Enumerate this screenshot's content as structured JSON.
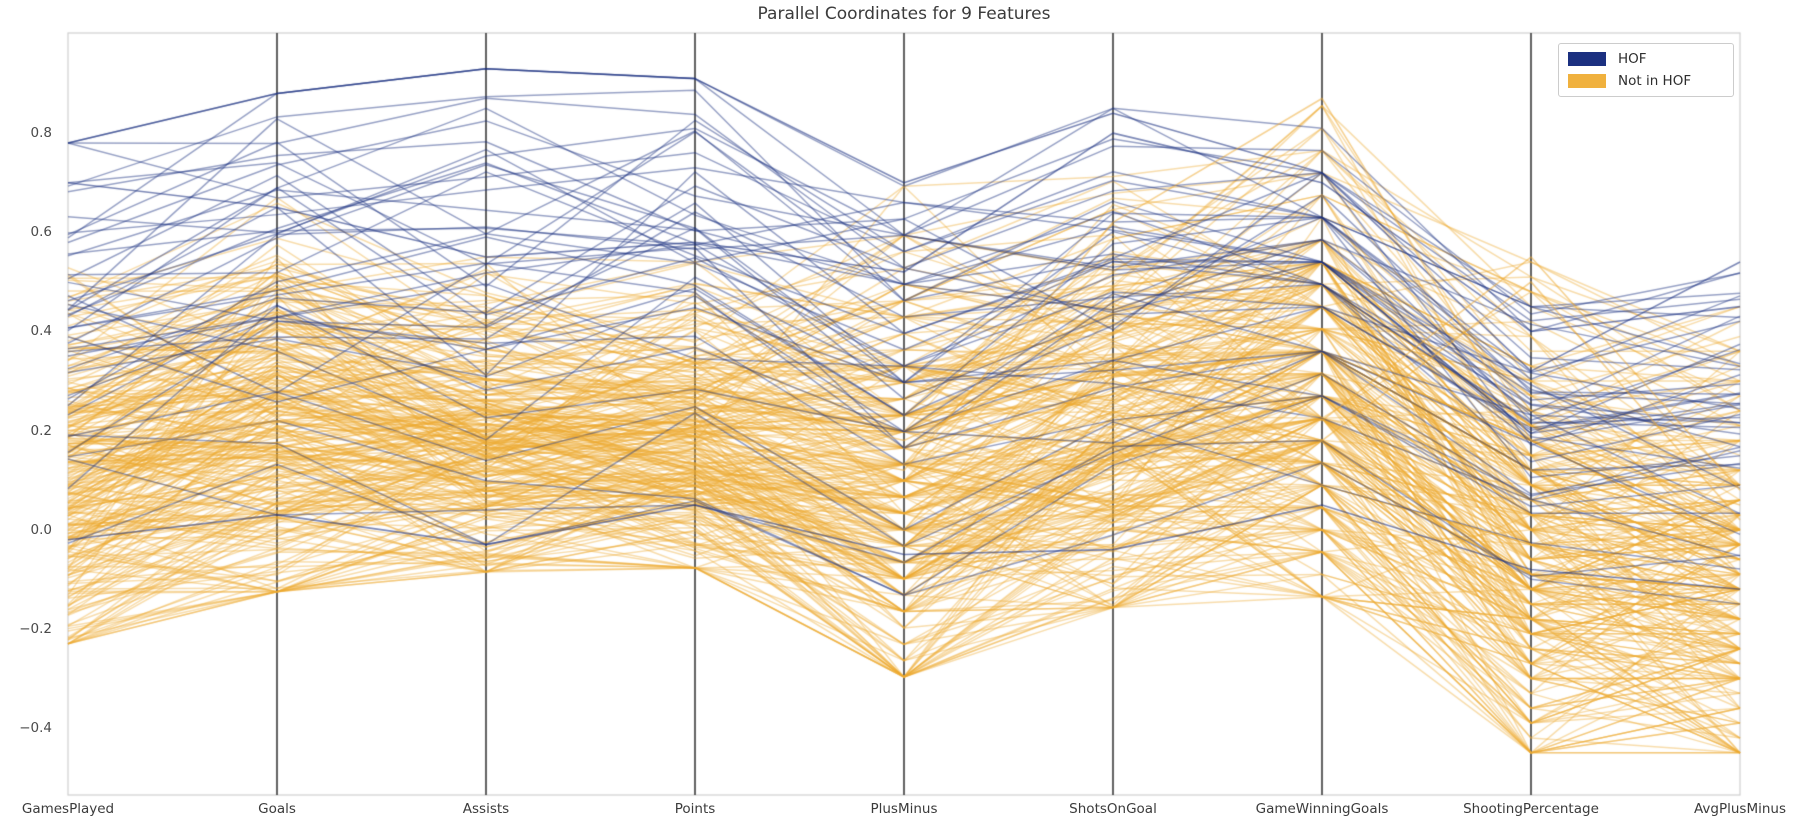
{
  "title": "Parallel Coordinates for 9 Features",
  "legend": {
    "items": [
      {
        "label": "HOF",
        "color": "#1b3080"
      },
      {
        "label": "Not in HOF",
        "color": "#f0b13e"
      }
    ]
  },
  "style": {
    "background": "#ffffff",
    "plot_border_color": "#cfcfcf",
    "axis_line_color": "#1f1f1f",
    "tick_label_color": "#4a4a4a",
    "title_color": "#3b3b3b",
    "hof_line_color": "#1b3080",
    "not_hof_line_color": "#eda92f"
  },
  "chart_data": {
    "type": "parallel_coordinates",
    "title": "Parallel Coordinates for 9 Features",
    "axes": [
      "GamesPlayed",
      "Goals",
      "Assists",
      "Points",
      "PlusMinus",
      "ShotsOnGoal",
      "GameWinningGoals",
      "ShootingPercentage",
      "AvgPlusMinus"
    ],
    "yticks": [
      0.8,
      0.6,
      0.4,
      0.2,
      0.0,
      -0.2,
      -0.4
    ],
    "ylim": [
      -0.535,
      1.002
    ],
    "grid": false,
    "legend_position": "upper right",
    "groups": [
      {
        "name": "Not in HOF",
        "color": "#eda92f",
        "alpha": 0.4,
        "count": 280,
        "seed": 7,
        "center": 0.42,
        "spread": 0.2,
        "jitter": 0.13,
        "quantize": [
          0,
          0,
          0,
          0,
          0.033,
          0,
          0.045,
          0.03,
          0.03
        ],
        "envelope": {
          "min": [
            -0.23,
            -0.125,
            -0.085,
            -0.077,
            -0.3,
            -0.157,
            -0.13,
            -0.46,
            -0.46
          ],
          "max": [
            0.57,
            0.67,
            0.55,
            0.54,
            0.69,
            0.72,
            0.87,
            0.55,
            0.45
          ]
        }
      },
      {
        "name": "HOF",
        "color": "#1b3080",
        "alpha": 0.45,
        "count": 44,
        "seed": 13,
        "center": 0.55,
        "spread": 0.2,
        "jitter": 0.12,
        "quantize": [
          0,
          0,
          0,
          0,
          0.033,
          0,
          0.045,
          0,
          0
        ],
        "envelope": {
          "min": [
            -0.03,
            0.03,
            -0.03,
            0.05,
            -0.12,
            -0.05,
            0.05,
            -0.1,
            -0.15
          ],
          "max": [
            0.78,
            0.88,
            0.93,
            0.91,
            0.7,
            0.85,
            0.83,
            0.45,
            0.54
          ]
        }
      }
    ],
    "highlight_lines": [
      {
        "group": "HOF",
        "values": [
          0.78,
          0.88,
          0.93,
          0.91,
          0.7,
          0.84,
          0.72,
          0.32,
          0.54
        ]
      },
      {
        "group": "HOF",
        "values": [
          0.7,
          0.65,
          0.55,
          0.58,
          0.52,
          0.8,
          0.7,
          0.4,
          0.45
        ]
      },
      {
        "group": "HOF",
        "values": [
          -0.02,
          0.03,
          -0.03,
          0.05,
          -0.05,
          -0.04,
          0.05,
          -0.08,
          -0.12
        ]
      },
      {
        "group": "Not in HOF",
        "values": [
          0.15,
          0.22,
          0.18,
          0.2,
          0.12,
          0.62,
          0.87,
          0.18,
          0.05
        ]
      },
      {
        "group": "Not in HOF",
        "values": [
          0.28,
          0.33,
          0.26,
          0.28,
          0.18,
          0.38,
          0.22,
          0.55,
          0.08
        ]
      },
      {
        "group": "Not in HOF",
        "values": [
          0.2,
          0.25,
          0.2,
          0.22,
          0.1,
          0.3,
          0.18,
          0.5,
          0.02
        ]
      }
    ]
  }
}
